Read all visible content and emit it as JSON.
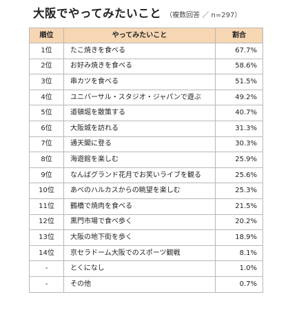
{
  "chart_data": {
    "type": "table",
    "title": "大阪でやってみたいこと",
    "subtitle": "（複数回答 ／ n=297）",
    "columns": [
      "順位",
      "やってみたいこと",
      "割合"
    ],
    "rows": [
      {
        "rank": "1位",
        "item": "たこ焼きを食べる",
        "value": "67.7%"
      },
      {
        "rank": "2位",
        "item": "お好み焼きを食べる",
        "value": "58.6%"
      },
      {
        "rank": "3位",
        "item": "串カツを食べる",
        "value": "51.5%"
      },
      {
        "rank": "4位",
        "item": "ユニバーサル・スタジオ・ジャパンで遊ぶ",
        "value": "49.2%"
      },
      {
        "rank": "5位",
        "item": "道頓堀を散策する",
        "value": "40.7%"
      },
      {
        "rank": "6位",
        "item": "大阪城を訪れる",
        "value": "31.3%"
      },
      {
        "rank": "7位",
        "item": "通天閣に登る",
        "value": "30.3%"
      },
      {
        "rank": "8位",
        "item": "海遊館を楽しむ",
        "value": "25.9%"
      },
      {
        "rank": "9位",
        "item": "なんばグランド花月でお笑いライブを観る",
        "value": "25.6%"
      },
      {
        "rank": "10位",
        "item": "あべのハルカスからの眺望を楽しむ",
        "value": "25.3%"
      },
      {
        "rank": "11位",
        "item": "鶴橋で焼肉を食べる",
        "value": "21.5%"
      },
      {
        "rank": "12位",
        "item": "黒門市場で食べ歩く",
        "value": "20.2%"
      },
      {
        "rank": "13位",
        "item": "大阪の地下街を歩く",
        "value": "18.9%"
      },
      {
        "rank": "14位",
        "item": "京セラドーム大阪でのスポーツ観戦",
        "value": "8.1%"
      },
      {
        "rank": "-",
        "item": "とくになし",
        "value": "1.0%"
      },
      {
        "rank": "-",
        "item": "その他",
        "value": "0.7%"
      }
    ],
    "header_color": "#f6d6b3",
    "border_color": "#b7b7b7"
  }
}
